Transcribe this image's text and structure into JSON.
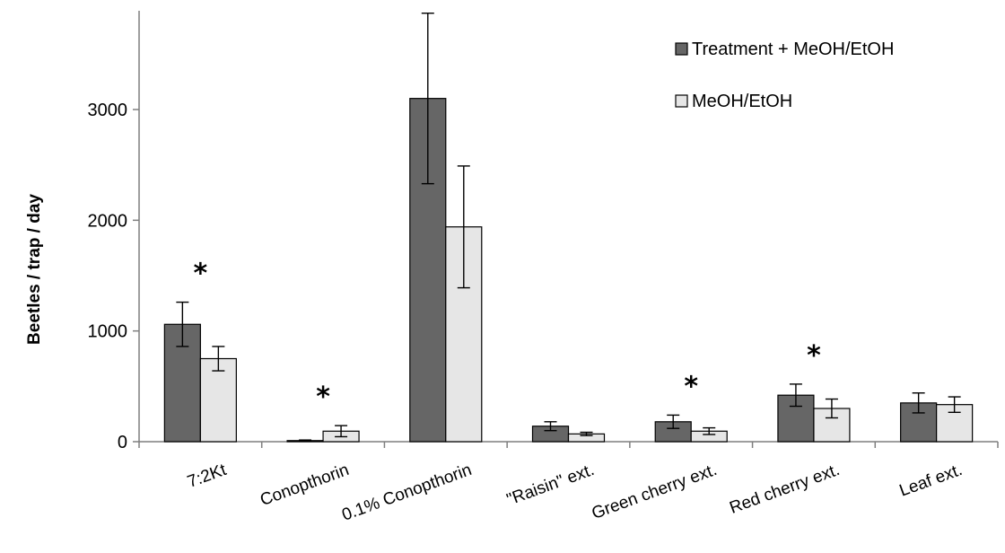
{
  "chart_data": {
    "type": "bar",
    "title": "",
    "xlabel": "",
    "ylabel": "Beetles / trap / day",
    "ylim": [
      0,
      3800
    ],
    "yticks": [
      0,
      1000,
      2000,
      3000
    ],
    "categories": [
      "7:2Kt",
      "Conopthorin",
      "0.1% Conopthorin",
      "\"Raisin\" ext.",
      "Green cherry ext.",
      "Red cherry ext.",
      "Leaf ext."
    ],
    "series": [
      {
        "name": "Treatment + MeOH/EtOH",
        "color": "#666666",
        "values": [
          1060,
          10,
          3100,
          140,
          180,
          420,
          350
        ],
        "errors": [
          200,
          5,
          770,
          40,
          60,
          100,
          90
        ]
      },
      {
        "name": "MeOH/EtOH",
        "color": "#e6e6e6",
        "values": [
          750,
          95,
          1940,
          70,
          95,
          300,
          335
        ],
        "errors": [
          110,
          50,
          550,
          15,
          30,
          85,
          70
        ]
      }
    ],
    "significance": [
      "*",
      "*",
      "",
      "",
      "*",
      "*",
      ""
    ],
    "legend_position": "top-right",
    "grid": false
  }
}
